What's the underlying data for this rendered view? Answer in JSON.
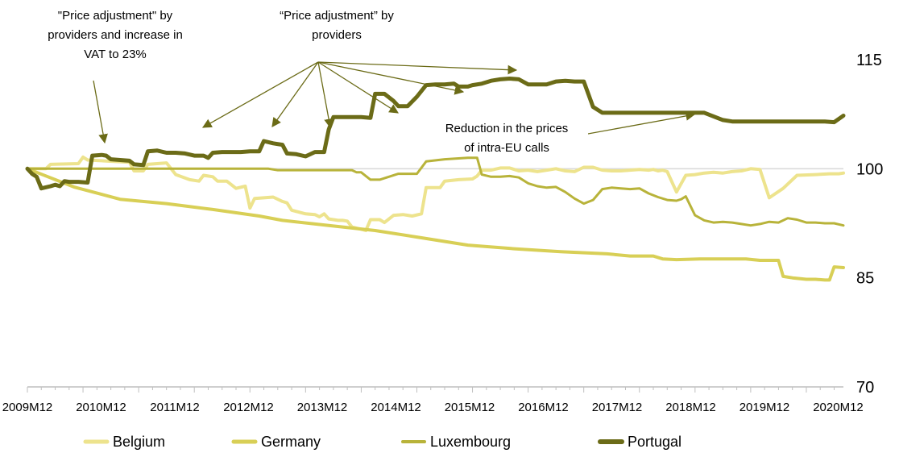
{
  "chart_data": {
    "type": "line",
    "title": "",
    "xlabel": "",
    "ylabel": "",
    "x_ticks": [
      "2009M12",
      "2010M12",
      "2011M12",
      "2012M12",
      "2013M12",
      "2014M12",
      "2015M12",
      "2016M12",
      "2017M12",
      "2018M12",
      "2019M12",
      "2020M12"
    ],
    "x_range_months": [
      0,
      135
    ],
    "yticks": [
      70,
      85,
      100,
      115
    ],
    "ylim": [
      70,
      115
    ],
    "y_axis_side": "right",
    "grid": false,
    "legend_position": "bottom",
    "series": [
      {
        "name": "Belgium",
        "color": "#ede38d",
        "width": 4,
        "points": [
          [
            0,
            100
          ],
          [
            4,
            100
          ],
          [
            5,
            100.6
          ],
          [
            11,
            100.7
          ],
          [
            12,
            101.6
          ],
          [
            13,
            101.2
          ],
          [
            16,
            101.1
          ],
          [
            22,
            100.9
          ],
          [
            23,
            99.7
          ],
          [
            25,
            99.7
          ],
          [
            26,
            100.6
          ],
          [
            30,
            100.8
          ],
          [
            32,
            99.2
          ],
          [
            35,
            98.5
          ],
          [
            37,
            98.3
          ],
          [
            38,
            99.1
          ],
          [
            40,
            98.9
          ],
          [
            41,
            98.3
          ],
          [
            43,
            98.3
          ],
          [
            45,
            97.3
          ],
          [
            47,
            97.6
          ],
          [
            48,
            94.6
          ],
          [
            49,
            95.9
          ],
          [
            53,
            96.1
          ],
          [
            55,
            95.5
          ],
          [
            56,
            95.3
          ],
          [
            57,
            94.3
          ],
          [
            60,
            93.8
          ],
          [
            62,
            93.7
          ],
          [
            63,
            93.4
          ],
          [
            64,
            93.8
          ],
          [
            65,
            93.1
          ],
          [
            67,
            92.9
          ],
          [
            68,
            92.9
          ],
          [
            69,
            92.8
          ],
          [
            70,
            92.0
          ],
          [
            73,
            91.5
          ],
          [
            74,
            93.0
          ],
          [
            76,
            93.0
          ],
          [
            77,
            92.6
          ],
          [
            79,
            93.6
          ],
          [
            81,
            93.7
          ],
          [
            83,
            93.5
          ],
          [
            85,
            93.8
          ],
          [
            86,
            97.4
          ],
          [
            89,
            97.4
          ],
          [
            90,
            98.3
          ],
          [
            93,
            98.5
          ],
          [
            96,
            98.6
          ],
          [
            97,
            99.0
          ],
          [
            98,
            99.8
          ],
          [
            100,
            99.8
          ],
          [
            102,
            100.1
          ],
          [
            104,
            100.1
          ],
          [
            106,
            99.7
          ],
          [
            108,
            99.8
          ],
          [
            110,
            99.6
          ],
          [
            112,
            99.8
          ],
          [
            114,
            100.0
          ],
          [
            116,
            99.7
          ],
          [
            118,
            99.6
          ],
          [
            120,
            100.2
          ],
          [
            122,
            100.2
          ],
          [
            124,
            99.8
          ],
          [
            126,
            99.7
          ],
          [
            128,
            99.7
          ],
          [
            130,
            99.8
          ],
          [
            132,
            99.9
          ],
          [
            134,
            99.8
          ],
          [
            135,
            99.9
          ],
          [
            136,
            99.7
          ],
          [
            137,
            99.8
          ],
          [
            138,
            99.6
          ],
          [
            140,
            96.8
          ],
          [
            142,
            99.1
          ],
          [
            144,
            99.2
          ],
          [
            146,
            99.4
          ],
          [
            148,
            99.5
          ],
          [
            150,
            99.4
          ],
          [
            152,
            99.6
          ],
          [
            154,
            99.7
          ],
          [
            156,
            100.0
          ],
          [
            158,
            99.9
          ],
          [
            160,
            96.0
          ],
          [
            163,
            97.3
          ],
          [
            166,
            99.1
          ],
          [
            170,
            99.2
          ],
          [
            173,
            99.3
          ],
          [
            175,
            99.3
          ],
          [
            176,
            99.4
          ]
        ]
      },
      {
        "name": "Germany",
        "color": "#d8cf56",
        "width": 4,
        "points": [
          [
            0,
            100
          ],
          [
            10,
            97.5
          ],
          [
            20,
            95.8
          ],
          [
            30,
            95.2
          ],
          [
            40,
            94.4
          ],
          [
            50,
            93.5
          ],
          [
            55,
            92.9
          ],
          [
            65,
            92.2
          ],
          [
            75,
            91.5
          ],
          [
            85,
            90.5
          ],
          [
            95,
            89.5
          ],
          [
            105,
            89.0
          ],
          [
            115,
            88.6
          ],
          [
            125,
            88.3
          ],
          [
            130,
            88.0
          ],
          [
            135,
            88.0
          ],
          [
            137,
            87.6
          ],
          [
            140,
            87.5
          ],
          [
            145,
            87.6
          ],
          [
            150,
            87.6
          ],
          [
            155,
            87.6
          ],
          [
            158,
            87.4
          ],
          [
            160,
            87.4
          ],
          [
            162,
            87.4
          ],
          [
            163,
            85.2
          ],
          [
            165,
            85.0
          ],
          [
            168,
            84.8
          ],
          [
            170,
            84.8
          ],
          [
            172,
            84.7
          ],
          [
            173,
            84.7
          ],
          [
            174,
            86.5
          ],
          [
            176,
            86.4
          ]
        ]
      },
      {
        "name": "Luxembourg",
        "color": "#b8b33a",
        "width": 3,
        "points": [
          [
            0,
            100
          ],
          [
            11,
            100
          ],
          [
            30,
            100
          ],
          [
            50,
            100
          ],
          [
            52,
            100
          ],
          [
            54,
            99.8
          ],
          [
            70,
            99.8
          ],
          [
            71,
            99.5
          ],
          [
            72,
            99.5
          ],
          [
            73,
            99.0
          ],
          [
            74,
            98.5
          ],
          [
            76,
            98.5
          ],
          [
            80,
            99.3
          ],
          [
            84,
            99.3
          ],
          [
            86,
            101.0
          ],
          [
            90,
            101.3
          ],
          [
            95,
            101.5
          ],
          [
            97,
            101.5
          ],
          [
            98,
            99.2
          ],
          [
            100,
            98.9
          ],
          [
            102,
            98.9
          ],
          [
            104,
            99.0
          ],
          [
            106,
            98.8
          ],
          [
            108,
            98.0
          ],
          [
            110,
            97.6
          ],
          [
            112,
            97.4
          ],
          [
            114,
            97.5
          ],
          [
            116,
            96.8
          ],
          [
            118,
            95.9
          ],
          [
            120,
            95.2
          ],
          [
            122,
            95.7
          ],
          [
            124,
            97.2
          ],
          [
            126,
            97.4
          ],
          [
            128,
            97.3
          ],
          [
            130,
            97.2
          ],
          [
            132,
            97.3
          ],
          [
            134,
            96.6
          ],
          [
            136,
            96.1
          ],
          [
            138,
            95.7
          ],
          [
            140,
            95.6
          ],
          [
            141,
            95.8
          ],
          [
            142,
            96.2
          ],
          [
            144,
            93.6
          ],
          [
            146,
            92.9
          ],
          [
            148,
            92.6
          ],
          [
            150,
            92.7
          ],
          [
            152,
            92.6
          ],
          [
            154,
            92.4
          ],
          [
            156,
            92.2
          ],
          [
            158,
            92.4
          ],
          [
            160,
            92.7
          ],
          [
            162,
            92.6
          ],
          [
            164,
            93.2
          ],
          [
            166,
            93.0
          ],
          [
            168,
            92.6
          ],
          [
            170,
            92.6
          ],
          [
            172,
            92.5
          ],
          [
            174,
            92.5
          ],
          [
            176,
            92.2
          ]
        ]
      },
      {
        "name": "Portugal",
        "color": "#6b6b17",
        "width": 5,
        "points": [
          [
            0,
            100
          ],
          [
            1,
            99.3
          ],
          [
            2,
            98.9
          ],
          [
            3,
            97.3
          ],
          [
            5,
            97.6
          ],
          [
            6,
            97.8
          ],
          [
            7,
            97.6
          ],
          [
            8,
            98.3
          ],
          [
            9,
            98.2
          ],
          [
            11,
            98.2
          ],
          [
            13,
            98.1
          ],
          [
            14,
            101.8
          ],
          [
            16,
            101.9
          ],
          [
            17,
            101.8
          ],
          [
            18,
            101.3
          ],
          [
            20,
            101.2
          ],
          [
            22,
            101.1
          ],
          [
            23,
            100.6
          ],
          [
            25,
            100.5
          ],
          [
            26,
            102.4
          ],
          [
            28,
            102.5
          ],
          [
            30,
            102.2
          ],
          [
            32,
            102.2
          ],
          [
            34,
            102.1
          ],
          [
            36,
            101.8
          ],
          [
            38,
            101.8
          ],
          [
            39,
            101.5
          ],
          [
            40,
            102.2
          ],
          [
            42,
            102.3
          ],
          [
            44,
            102.3
          ],
          [
            46,
            102.3
          ],
          [
            48,
            102.4
          ],
          [
            50,
            102.4
          ],
          [
            51,
            103.8
          ],
          [
            53,
            103.5
          ],
          [
            55,
            103.3
          ],
          [
            56,
            102.1
          ],
          [
            58,
            102.0
          ],
          [
            60,
            101.7
          ],
          [
            62,
            102.3
          ],
          [
            64,
            102.3
          ],
          [
            65,
            105.4
          ],
          [
            66,
            107.1
          ],
          [
            68,
            107.1
          ],
          [
            70,
            107.1
          ],
          [
            72,
            107.1
          ],
          [
            74,
            107.0
          ],
          [
            75,
            110.3
          ],
          [
            77,
            110.3
          ],
          [
            79,
            109.3
          ],
          [
            80,
            108.6
          ],
          [
            82,
            108.6
          ],
          [
            84,
            109.9
          ],
          [
            86,
            111.5
          ],
          [
            88,
            111.6
          ],
          [
            90,
            111.6
          ],
          [
            92,
            111.7
          ],
          [
            93,
            111.3
          ],
          [
            95,
            111.3
          ],
          [
            96,
            111.5
          ],
          [
            98,
            111.7
          ],
          [
            100,
            112.1
          ],
          [
            102,
            112.3
          ],
          [
            104,
            112.4
          ],
          [
            106,
            112.3
          ],
          [
            108,
            111.6
          ],
          [
            110,
            111.6
          ],
          [
            112,
            111.6
          ],
          [
            114,
            112.0
          ],
          [
            116,
            112.1
          ],
          [
            118,
            112.0
          ],
          [
            120,
            112.0
          ],
          [
            122,
            108.5
          ],
          [
            124,
            107.7
          ],
          [
            126,
            107.7
          ],
          [
            128,
            107.7
          ],
          [
            130,
            107.7
          ],
          [
            132,
            107.7
          ],
          [
            134,
            107.7
          ],
          [
            136,
            107.7
          ],
          [
            138,
            107.7
          ],
          [
            140,
            107.7
          ],
          [
            142,
            107.7
          ],
          [
            144,
            107.7
          ],
          [
            146,
            107.7
          ],
          [
            148,
            107.2
          ],
          [
            150,
            106.7
          ],
          [
            152,
            106.5
          ],
          [
            154,
            106.5
          ],
          [
            156,
            106.5
          ],
          [
            158,
            106.5
          ],
          [
            160,
            106.5
          ],
          [
            162,
            106.5
          ],
          [
            164,
            106.5
          ],
          [
            166,
            106.5
          ],
          [
            168,
            106.5
          ],
          [
            170,
            106.5
          ],
          [
            172,
            106.5
          ],
          [
            174,
            106.4
          ],
          [
            176,
            107.3
          ]
        ]
      }
    ],
    "annotations": [
      {
        "lines": [
          "\"Price adjustment\" by",
          "providers and increase in",
          "VAT to 23%"
        ]
      },
      {
        "lines": [
          "“Price adjustment” by",
          "providers"
        ]
      },
      {
        "lines": [
          "Reduction in the prices",
          "of intra-EU calls"
        ]
      }
    ]
  }
}
